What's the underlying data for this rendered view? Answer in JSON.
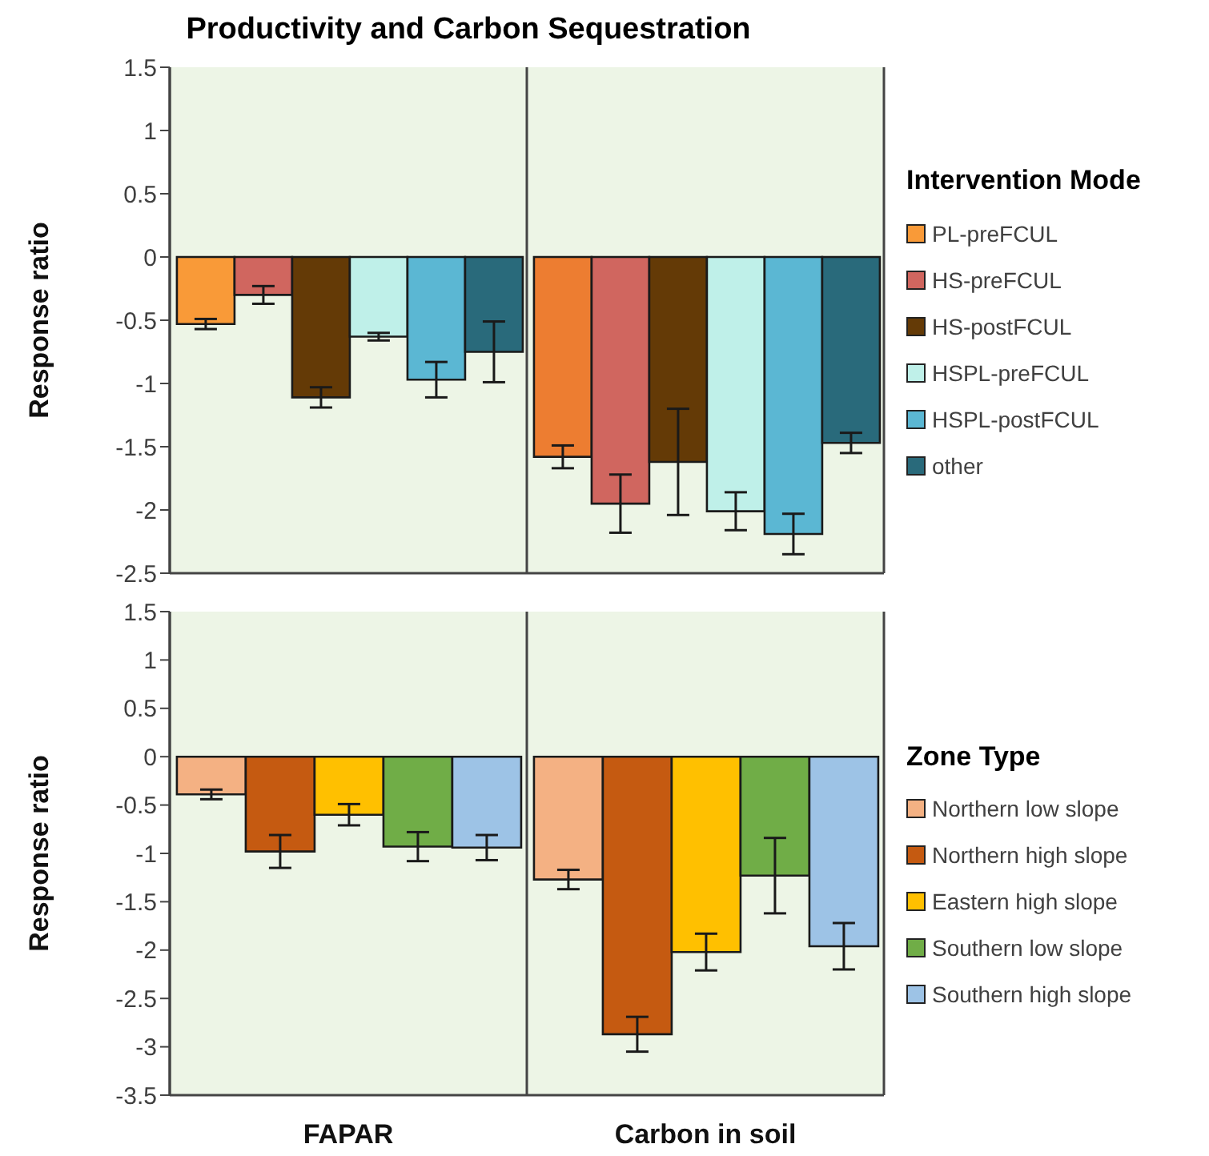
{
  "chart_data": [
    {
      "type": "bar",
      "title": "Productivity and Carbon Sequestration",
      "ylabel": "Response ratio",
      "legend_title": "Intervention Mode",
      "categories": [
        null,
        null
      ],
      "tick_labels": "y",
      "ylim": [
        -2.5,
        1.5
      ],
      "yticks": [
        {
          "value": -2.5,
          "label": "-2.5"
        },
        {
          "value": -2,
          "label": "-2"
        },
        {
          "value": -1.5,
          "label": "-1.5"
        },
        {
          "value": -1,
          "label": "-1"
        },
        {
          "value": -0.5,
          "label": "-0.5"
        },
        0,
        0.5,
        1,
        1.5
      ],
      "grid": "x",
      "legend": "right",
      "series": [
        {
          "name": "PL-preFCUL",
          "color": "#f99a38",
          "colors": [
            "#f99a38",
            "#ed7d31"
          ],
          "values": [
            -0.53,
            -1.58
          ],
          "errors": [
            0.04,
            0.09
          ]
        },
        {
          "name": "HS-preFCUL",
          "color": "#d0665f",
          "values": [
            -0.3,
            -1.95
          ],
          "errors": [
            0.07,
            0.23
          ]
        },
        {
          "name": "HS-postFCUL",
          "color": "#643a06",
          "values": [
            -1.11,
            -1.62
          ],
          "errors": [
            0.08,
            0.42
          ]
        },
        {
          "name": "HSPL-preFCUL",
          "color": "#bff0e9",
          "values": [
            -0.63,
            -2.01
          ],
          "errors": [
            0.03,
            0.15
          ]
        },
        {
          "name": "HSPL-postFCUL",
          "color": "#5bb7d3",
          "values": [
            -0.97,
            -2.19
          ],
          "errors": [
            0.14,
            0.16
          ]
        },
        {
          "name": "other",
          "color": "#296a7b",
          "values": [
            -0.75,
            -1.47
          ],
          "errors": [
            0.24,
            0.08
          ]
        }
      ]
    },
    {
      "type": "bar",
      "ylabel": "Response ratio",
      "legend_title": "Zone Type",
      "categories": [
        "FAPAR",
        "Carbon in soil"
      ],
      "ylim": [
        -3.5,
        1.5
      ],
      "yticks": [
        {
          "value": -3.5,
          "label": "-3.5"
        },
        {
          "value": -3,
          "label": "-3"
        },
        {
          "value": -2.5,
          "label": "-2.5"
        },
        {
          "value": -2,
          "label": "-2"
        },
        {
          "value": -1.5,
          "label": "-1.5"
        },
        {
          "value": -1,
          "label": "-1"
        },
        {
          "value": -0.5,
          "label": "-0.5"
        },
        0,
        0.5,
        1,
        1.5
      ],
      "grid": "x",
      "legend": "right",
      "series": [
        {
          "name": "Northern low slope",
          "color": "#f4b183",
          "values": [
            -0.39,
            -1.27
          ],
          "errors": [
            0.05,
            0.1
          ]
        },
        {
          "name": "Northern high slope",
          "color": "#c55a11",
          "values": [
            -0.98,
            -2.87
          ],
          "errors": [
            0.17,
            0.18
          ]
        },
        {
          "name": "Eastern high slope",
          "color": "#ffc000",
          "values": [
            -0.6,
            -2.02
          ],
          "errors": [
            0.11,
            0.19
          ]
        },
        {
          "name": "Southern low slope",
          "color": "#70ad47",
          "values": [
            -0.93,
            -1.23
          ],
          "errors": [
            0.15,
            0.39
          ]
        },
        {
          "name": "Southern high slope",
          "color": "#9dc3e6",
          "values": [
            -0.94,
            -1.96
          ],
          "errors": [
            0.13,
            0.24
          ]
        }
      ]
    }
  ]
}
